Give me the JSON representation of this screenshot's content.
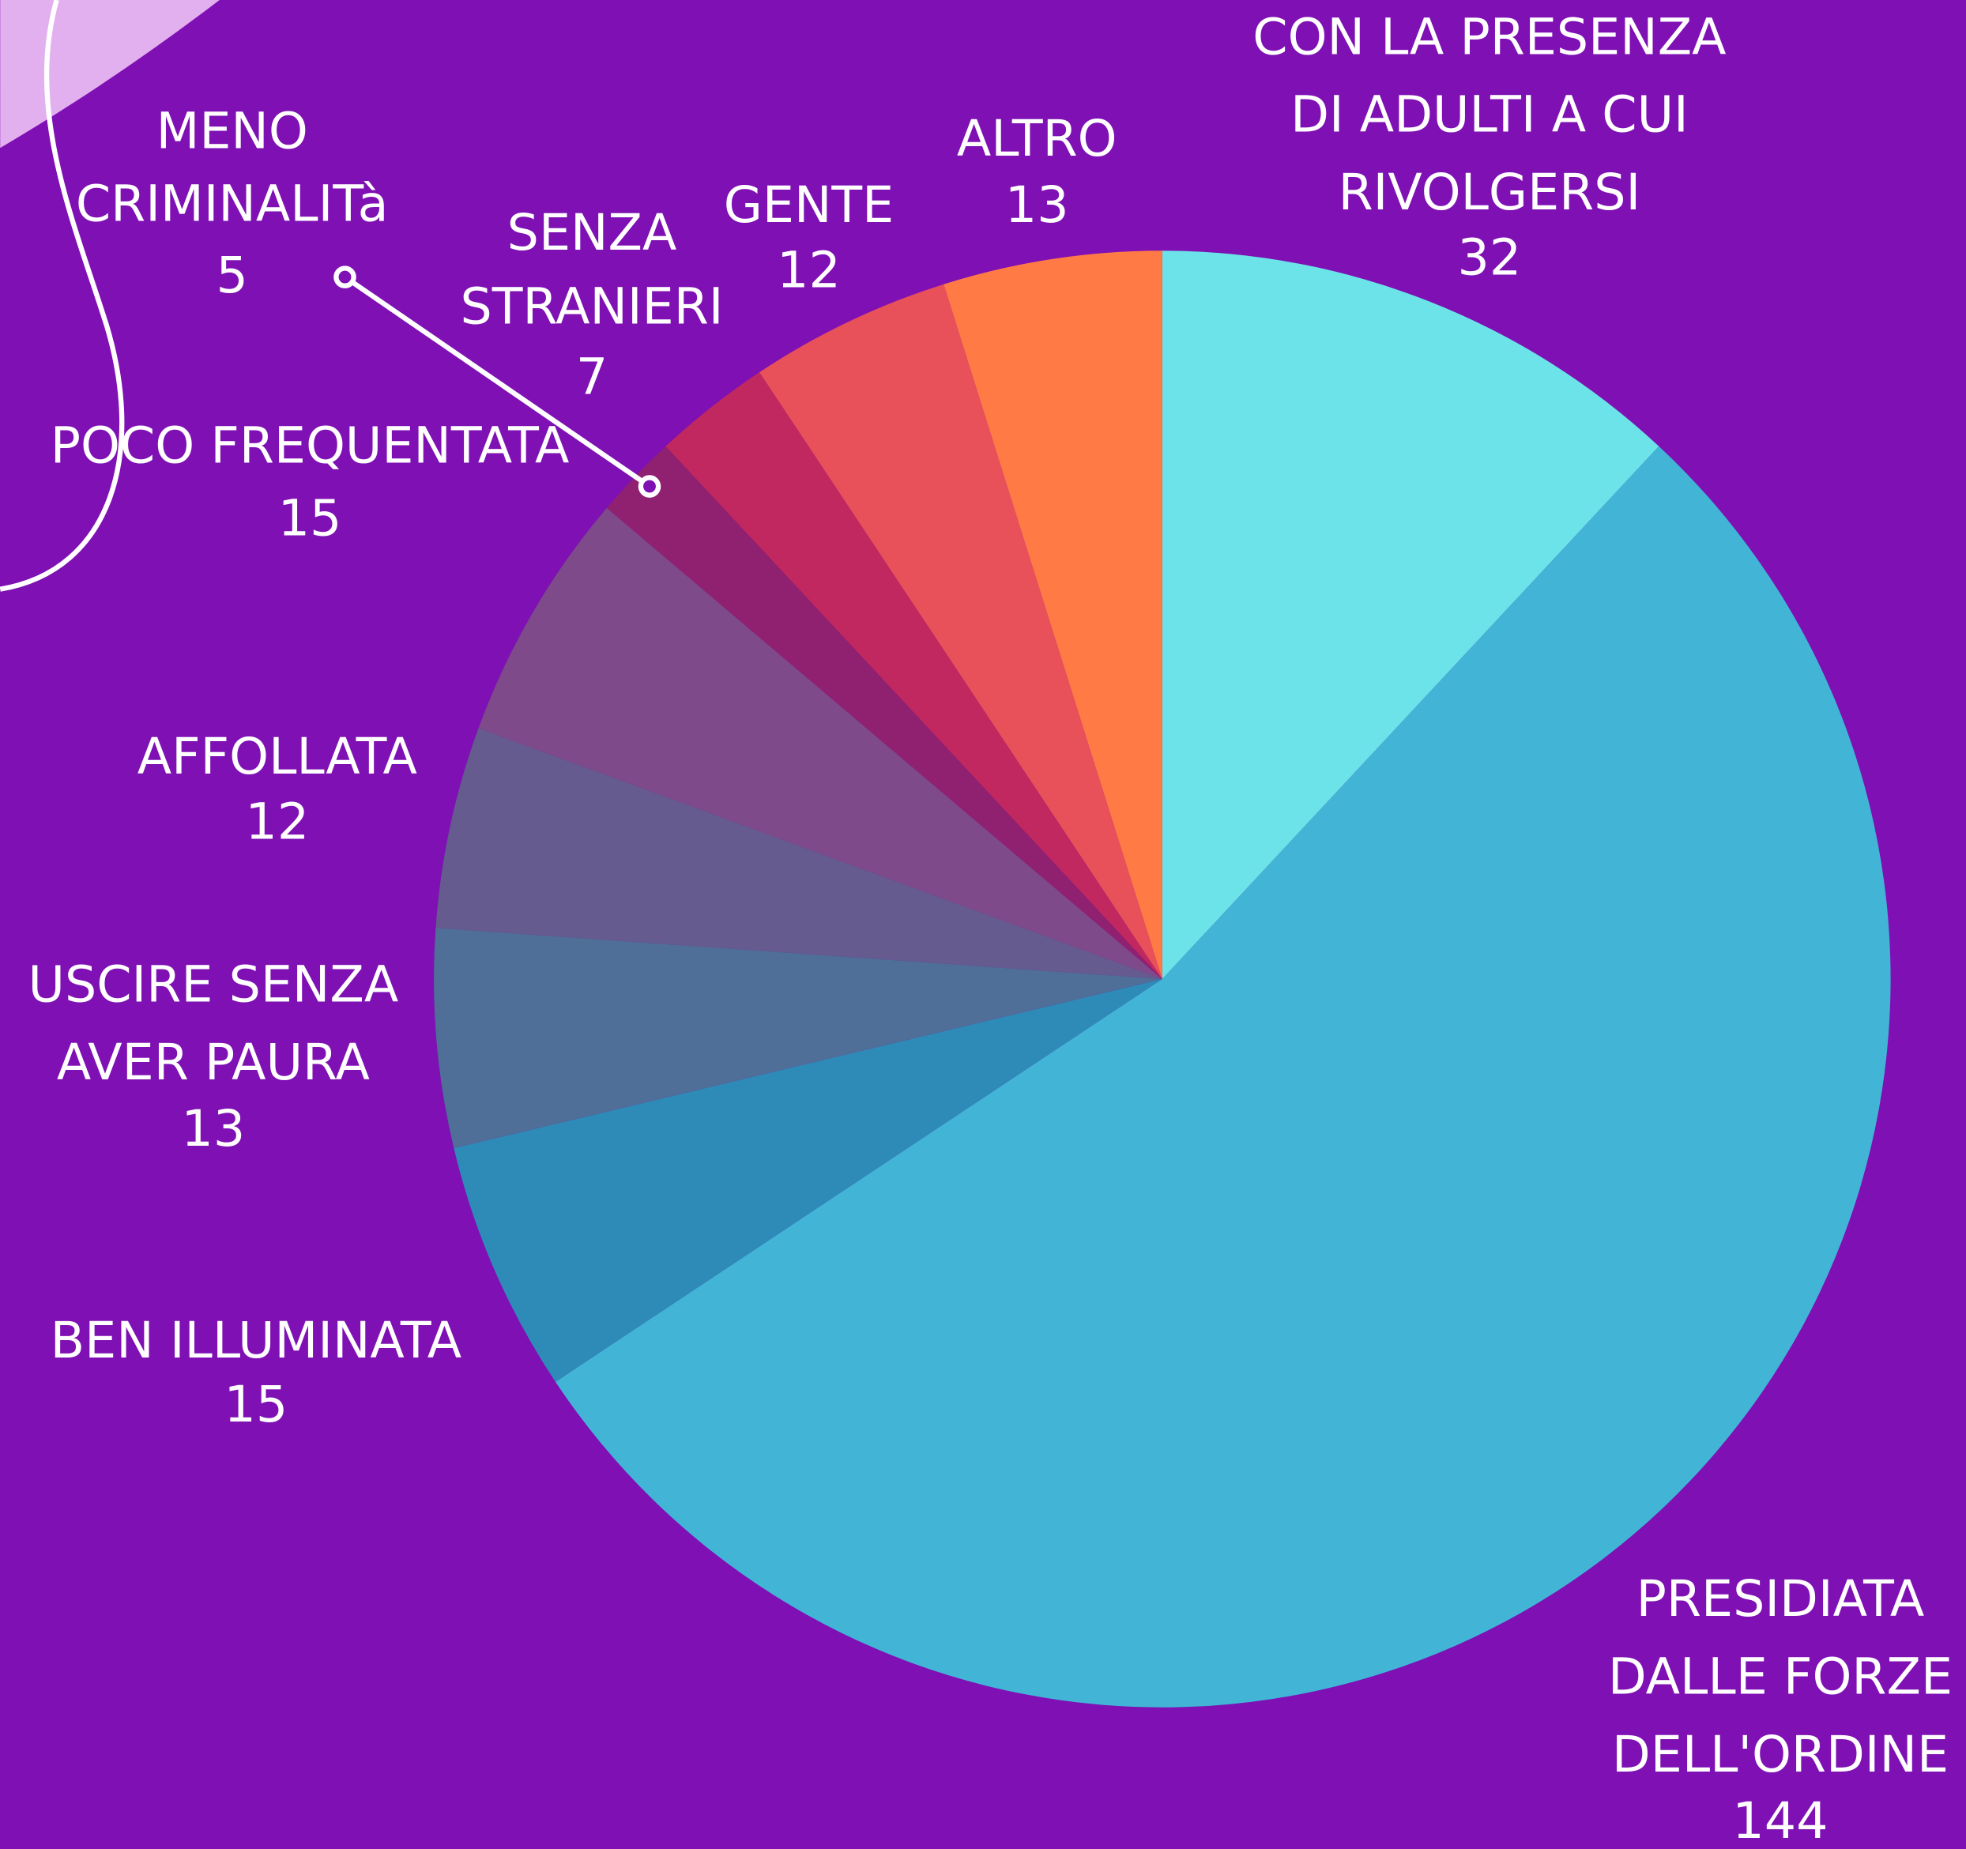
{
  "chart_data": {
    "type": "pie",
    "labels": [
      [
        "CON LA PRESENZA",
        "DI ADULTI A CUI",
        "RIVOLGERSI"
      ],
      [
        "PRESIDIATA",
        "DALLE FORZE",
        "DELL'ORDINE"
      ],
      [
        "BEN ILLUMINATA"
      ],
      [
        "USCIRE SENZA",
        "AVER PAURA"
      ],
      [
        "AFFOLLATA"
      ],
      [
        "POCO FREQUENTATA"
      ],
      [
        "MENO",
        "CRIMINALITà"
      ],
      [
        "SENZA",
        "STRANIERI"
      ],
      [
        "GENTE"
      ],
      [
        "ALTRO"
      ]
    ],
    "values": [
      32,
      144,
      15,
      13,
      12,
      15,
      5,
      7,
      12,
      13
    ],
    "colors": [
      "#6ce3e8",
      "#42b5d6",
      "#2e8bb8",
      "#4f6e98",
      "#655b8e",
      "#7e4a8a",
      "#902070",
      "#c0285f",
      "#e8505a",
      "#ff7a45"
    ]
  }
}
